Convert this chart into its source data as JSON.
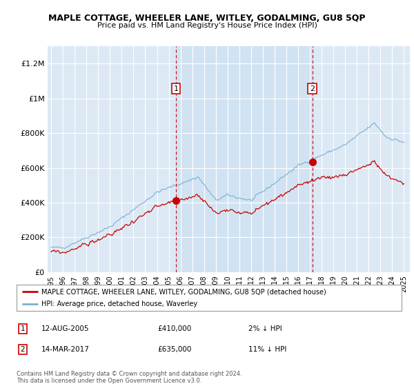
{
  "title": "MAPLE COTTAGE, WHEELER LANE, WITLEY, GODALMING, GU8 5QP",
  "subtitle": "Price paid vs. HM Land Registry's House Price Index (HPI)",
  "bg_color": "#dce9f5",
  "ylim": [
    0,
    1300000
  ],
  "xlim": [
    1994.7,
    2025.5
  ],
  "yticks": [
    0,
    200000,
    400000,
    600000,
    800000,
    1000000,
    1200000
  ],
  "ytick_labels": [
    "£0",
    "£200K",
    "£400K",
    "£600K",
    "£800K",
    "£1M",
    "£1.2M"
  ],
  "xticks": [
    1995,
    1996,
    1997,
    1998,
    1999,
    2000,
    2001,
    2002,
    2003,
    2004,
    2005,
    2006,
    2007,
    2008,
    2009,
    2010,
    2011,
    2012,
    2013,
    2014,
    2015,
    2016,
    2017,
    2018,
    2019,
    2020,
    2021,
    2022,
    2023,
    2024,
    2025
  ],
  "sale1_x": 2005.62,
  "sale1_y": 410000,
  "sale2_x": 2017.21,
  "sale2_y": 635000,
  "sale1_date": "12-AUG-2005",
  "sale1_price": "£410,000",
  "sale1_hpi": "2% ↓ HPI",
  "sale2_date": "14-MAR-2017",
  "sale2_price": "£635,000",
  "sale2_hpi": "11% ↓ HPI",
  "line1_color": "#cc0000",
  "line2_color": "#7ab0d4",
  "legend1": "MAPLE COTTAGE, WHEELER LANE, WITLEY, GODALMING, GU8 5QP (detached house)",
  "legend2": "HPI: Average price, detached house, Waverley",
  "footer": "Contains HM Land Registry data © Crown copyright and database right 2024.\nThis data is licensed under the Open Government Licence v3.0."
}
